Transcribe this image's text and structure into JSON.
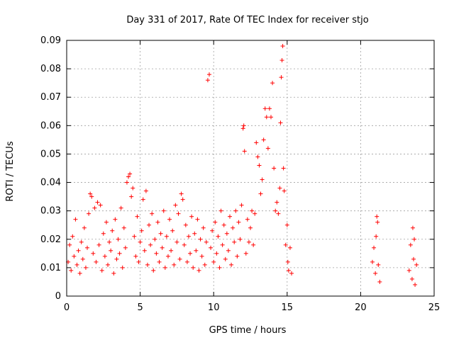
{
  "chart_data": {
    "type": "scatter",
    "title": "Day 331 of 2017, Rate Of TEC Index for receiver stjo",
    "xlabel": "GPS time / hours",
    "ylabel": "ROTI / TECUs",
    "xlim": [
      0,
      25
    ],
    "ylim": [
      0,
      0.09
    ],
    "x_ticks": [
      "0",
      "5",
      "10",
      "15",
      "20",
      "25"
    ],
    "y_ticks": [
      "0",
      "0.01",
      "0.02",
      "0.03",
      "0.04",
      "0.05",
      "0.06",
      "0.07",
      "0.08",
      "0.09"
    ],
    "grid": true,
    "marker": "+",
    "series": [
      {
        "color": "#ff0000",
        "points": [
          [
            0.1,
            0.012
          ],
          [
            0.2,
            0.018
          ],
          [
            0.3,
            0.009
          ],
          [
            0.4,
            0.021
          ],
          [
            0.5,
            0.014
          ],
          [
            0.6,
            0.027
          ],
          [
            0.7,
            0.011
          ],
          [
            0.8,
            0.016
          ],
          [
            0.9,
            0.008
          ],
          [
            1.0,
            0.019
          ],
          [
            1.1,
            0.013
          ],
          [
            1.2,
            0.024
          ],
          [
            1.3,
            0.01
          ],
          [
            1.4,
            0.017
          ],
          [
            1.5,
            0.029
          ],
          [
            1.6,
            0.036
          ],
          [
            1.7,
            0.035
          ],
          [
            1.8,
            0.015
          ],
          [
            1.9,
            0.031
          ],
          [
            2.0,
            0.012
          ],
          [
            2.1,
            0.033
          ],
          [
            2.2,
            0.018
          ],
          [
            2.3,
            0.032
          ],
          [
            2.4,
            0.009
          ],
          [
            2.5,
            0.022
          ],
          [
            2.6,
            0.014
          ],
          [
            2.7,
            0.026
          ],
          [
            2.8,
            0.011
          ],
          [
            2.9,
            0.019
          ],
          [
            3.0,
            0.016
          ],
          [
            3.1,
            0.023
          ],
          [
            3.2,
            0.008
          ],
          [
            3.3,
            0.027
          ],
          [
            3.4,
            0.013
          ],
          [
            3.5,
            0.02
          ],
          [
            3.6,
            0.015
          ],
          [
            3.7,
            0.031
          ],
          [
            3.8,
            0.01
          ],
          [
            3.9,
            0.024
          ],
          [
            4.0,
            0.017
          ],
          [
            4.1,
            0.04
          ],
          [
            4.2,
            0.042
          ],
          [
            4.3,
            0.043
          ],
          [
            4.4,
            0.035
          ],
          [
            4.5,
            0.038
          ],
          [
            4.6,
            0.021
          ],
          [
            4.7,
            0.014
          ],
          [
            4.8,
            0.028
          ],
          [
            4.9,
            0.012
          ],
          [
            5.0,
            0.019
          ],
          [
            5.1,
            0.023
          ],
          [
            5.2,
            0.034
          ],
          [
            5.3,
            0.016
          ],
          [
            5.4,
            0.037
          ],
          [
            5.5,
            0.011
          ],
          [
            5.6,
            0.025
          ],
          [
            5.7,
            0.018
          ],
          [
            5.8,
            0.029
          ],
          [
            5.9,
            0.009
          ],
          [
            6.0,
            0.02
          ],
          [
            6.1,
            0.015
          ],
          [
            6.2,
            0.026
          ],
          [
            6.3,
            0.012
          ],
          [
            6.4,
            0.022
          ],
          [
            6.5,
            0.017
          ],
          [
            6.6,
            0.03
          ],
          [
            6.7,
            0.01
          ],
          [
            6.8,
            0.021
          ],
          [
            6.9,
            0.014
          ],
          [
            7.0,
            0.027
          ],
          [
            7.1,
            0.016
          ],
          [
            7.2,
            0.023
          ],
          [
            7.3,
            0.011
          ],
          [
            7.4,
            0.032
          ],
          [
            7.5,
            0.019
          ],
          [
            7.6,
            0.029
          ],
          [
            7.7,
            0.013
          ],
          [
            7.8,
            0.036
          ],
          [
            7.9,
            0.034
          ],
          [
            8.0,
            0.018
          ],
          [
            8.1,
            0.025
          ],
          [
            8.2,
            0.012
          ],
          [
            8.3,
            0.021
          ],
          [
            8.4,
            0.015
          ],
          [
            8.5,
            0.028
          ],
          [
            8.6,
            0.01
          ],
          [
            8.7,
            0.022
          ],
          [
            8.8,
            0.016
          ],
          [
            8.9,
            0.027
          ],
          [
            9.0,
            0.009
          ],
          [
            9.1,
            0.02
          ],
          [
            9.2,
            0.014
          ],
          [
            9.3,
            0.024
          ],
          [
            9.4,
            0.011
          ],
          [
            9.5,
            0.019
          ],
          [
            9.6,
            0.076
          ],
          [
            9.7,
            0.078
          ],
          [
            9.8,
            0.017
          ],
          [
            9.9,
            0.023
          ],
          [
            10.0,
            0.012
          ],
          [
            10.1,
            0.026
          ],
          [
            10.2,
            0.015
          ],
          [
            10.3,
            0.021
          ],
          [
            10.4,
            0.01
          ],
          [
            10.5,
            0.03
          ],
          [
            10.6,
            0.018
          ],
          [
            10.7,
            0.025
          ],
          [
            10.8,
            0.013
          ],
          [
            10.9,
            0.022
          ],
          [
            11.0,
            0.016
          ],
          [
            11.1,
            0.028
          ],
          [
            11.2,
            0.011
          ],
          [
            11.3,
            0.024
          ],
          [
            11.4,
            0.019
          ],
          [
            11.5,
            0.03
          ],
          [
            11.6,
            0.014
          ],
          [
            11.7,
            0.026
          ],
          [
            11.8,
            0.02
          ],
          [
            11.9,
            0.032
          ],
          [
            12.0,
            0.059
          ],
          [
            12.05,
            0.06
          ],
          [
            12.1,
            0.051
          ],
          [
            12.2,
            0.015
          ],
          [
            12.3,
            0.027
          ],
          [
            12.4,
            0.019
          ],
          [
            12.5,
            0.024
          ],
          [
            12.6,
            0.03
          ],
          [
            12.7,
            0.018
          ],
          [
            12.8,
            0.029
          ],
          [
            12.9,
            0.054
          ],
          [
            13.0,
            0.049
          ],
          [
            13.1,
            0.046
          ],
          [
            13.2,
            0.036
          ],
          [
            13.3,
            0.041
          ],
          [
            13.4,
            0.055
          ],
          [
            13.5,
            0.066
          ],
          [
            13.6,
            0.063
          ],
          [
            13.7,
            0.052
          ],
          [
            13.8,
            0.066
          ],
          [
            13.9,
            0.063
          ],
          [
            14.0,
            0.075
          ],
          [
            14.1,
            0.045
          ],
          [
            14.2,
            0.03
          ],
          [
            14.3,
            0.033
          ],
          [
            14.4,
            0.029
          ],
          [
            14.5,
            0.038
          ],
          [
            14.55,
            0.061
          ],
          [
            14.6,
            0.077
          ],
          [
            14.65,
            0.083
          ],
          [
            14.7,
            0.088
          ],
          [
            14.75,
            0.045
          ],
          [
            14.8,
            0.037
          ],
          [
            14.9,
            0.018
          ],
          [
            15.0,
            0.025
          ],
          [
            15.05,
            0.012
          ],
          [
            15.1,
            0.009
          ],
          [
            15.2,
            0.017
          ],
          [
            15.3,
            0.008
          ],
          [
            20.8,
            0.012
          ],
          [
            20.9,
            0.017
          ],
          [
            21.0,
            0.008
          ],
          [
            21.05,
            0.021
          ],
          [
            21.1,
            0.028
          ],
          [
            21.15,
            0.026
          ],
          [
            21.2,
            0.011
          ],
          [
            21.3,
            0.005
          ],
          [
            23.3,
            0.009
          ],
          [
            23.4,
            0.018
          ],
          [
            23.5,
            0.006
          ],
          [
            23.55,
            0.024
          ],
          [
            23.6,
            0.013
          ],
          [
            23.65,
            0.02
          ],
          [
            23.7,
            0.004
          ],
          [
            23.8,
            0.011
          ]
        ]
      }
    ]
  }
}
